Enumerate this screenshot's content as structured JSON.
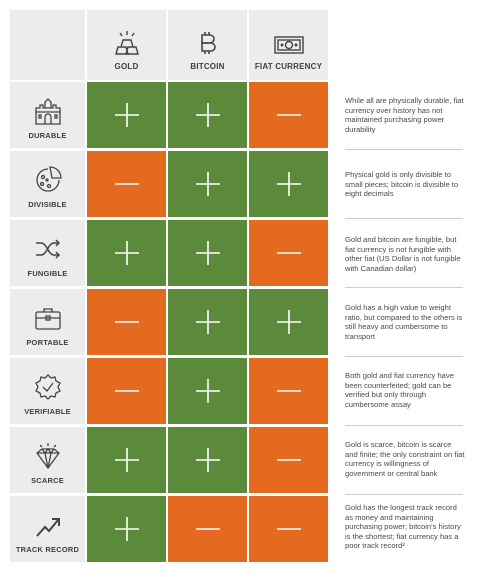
{
  "columns": [
    {
      "label": "GOLD",
      "icon": "gold-bars-icon"
    },
    {
      "label": "BITCOIN",
      "icon": "bitcoin-icon"
    },
    {
      "label": "FIAT CURRENCY",
      "icon": "banknote-icon"
    }
  ],
  "rows": [
    {
      "label": "DURABLE",
      "icon": "castle-icon",
      "values": [
        "+",
        "+",
        "-"
      ],
      "note": "While all are physically durable, fiat currency over history has not maintained purchasing power durability"
    },
    {
      "label": "DIVISIBLE",
      "icon": "pizza-icon",
      "values": [
        "-",
        "+",
        "+"
      ],
      "note": "Physical gold is only divisible to small pieces; bitcoin is divisible to eight decimals"
    },
    {
      "label": "FUNGIBLE",
      "icon": "shuffle-icon",
      "values": [
        "+",
        "+",
        "-"
      ],
      "note": "Gold and bitcoin are fungible, but fiat currency is not fungible with other fiat (US Dollar is not fungible with Canadian dollar)"
    },
    {
      "label": "PORTABLE",
      "icon": "briefcase-icon",
      "values": [
        "-",
        "+",
        "+"
      ],
      "note": "Gold has a high value to weight ratio, but compared to the others is still heavy and cumbersome to transport"
    },
    {
      "label": "VERIFIABLE",
      "icon": "verified-badge-icon",
      "values": [
        "-",
        "+",
        "-"
      ],
      "note": "Both gold and fiat currency have been counterfeited; gold can be verified but only through cumbersome assay"
    },
    {
      "label": "SCARCE",
      "icon": "diamond-icon",
      "values": [
        "+",
        "+",
        "-"
      ],
      "note": "Gold is scarce, bitcoin is scarce and finite; the only constraint on fiat currency is willingness of government or central bank"
    },
    {
      "label": "TRACK RECORD",
      "icon": "trend-up-icon",
      "values": [
        "+",
        "-",
        "-"
      ],
      "note": "Gold has the longest track record as money and maintaining purchasing power; bitcoin's history is the shortest; fiat currency has a poor track record²"
    }
  ],
  "colors": {
    "plus": "#5a8a3a",
    "minus": "#e36a1f",
    "header_bg": "#ececec"
  }
}
